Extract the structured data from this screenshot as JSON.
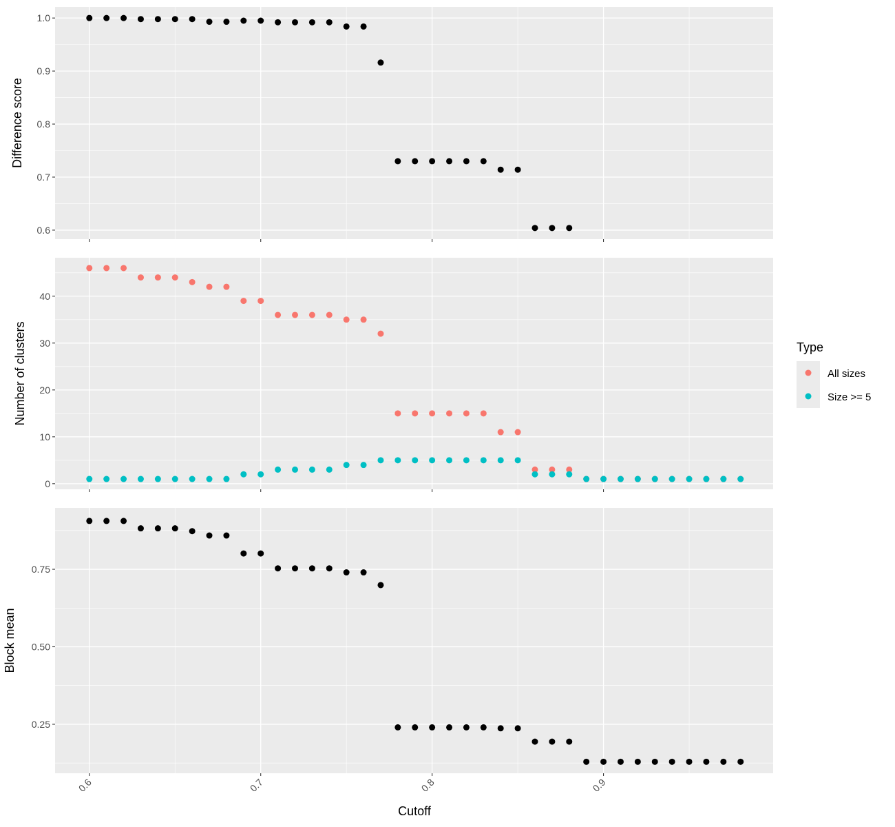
{
  "chart_data": {
    "type": "scatter",
    "xlabel": "Cutoff",
    "x_ticks": [
      "0.6",
      "0.7",
      "0.8",
      "0.9"
    ],
    "x_tick_values": [
      0.6,
      0.7,
      0.8,
      0.9
    ],
    "xlim": [
      0.58,
      0.999
    ],
    "grid": true,
    "legend": {
      "title": "Type",
      "placement": "right",
      "entries": [
        {
          "label": "All sizes",
          "color": "#F8766D"
        },
        {
          "label": "Size >= 5",
          "color": "#00BFC4"
        }
      ]
    },
    "panels": [
      {
        "ylabel": "Difference score",
        "ylim": [
          0.583,
          1.021
        ],
        "y_ticks": [
          "0.6",
          "0.7",
          "0.8",
          "0.9",
          "1.0"
        ],
        "y_tick_values": [
          0.6,
          0.7,
          0.8,
          0.9,
          1.0
        ],
        "series": [
          {
            "name": "Difference score",
            "color": "#000000",
            "x": [
              0.6,
              0.61,
              0.62,
              0.63,
              0.64,
              0.65,
              0.66,
              0.67,
              0.68,
              0.69,
              0.7,
              0.71,
              0.72,
              0.73,
              0.74,
              0.75,
              0.76,
              0.77,
              0.78,
              0.79,
              0.8,
              0.81,
              0.82,
              0.83,
              0.84,
              0.85,
              0.86,
              0.87,
              0.88
            ],
            "y": [
              1.0,
              1.0,
              1.0,
              0.998,
              0.998,
              0.998,
              0.998,
              0.993,
              0.993,
              0.995,
              0.995,
              0.992,
              0.992,
              0.992,
              0.992,
              0.984,
              0.984,
              0.916,
              0.73,
              0.73,
              0.73,
              0.73,
              0.73,
              0.73,
              0.714,
              0.714,
              0.604,
              0.604,
              0.604
            ]
          }
        ]
      },
      {
        "ylabel": "Number of clusters",
        "ylim": [
          -1.2,
          48.2
        ],
        "y_ticks": [
          "0",
          "10",
          "20",
          "30",
          "40"
        ],
        "y_tick_values": [
          0,
          10,
          20,
          30,
          40
        ],
        "series": [
          {
            "name": "All sizes",
            "color": "#F8766D",
            "x": [
              0.6,
              0.61,
              0.62,
              0.63,
              0.64,
              0.65,
              0.66,
              0.67,
              0.68,
              0.69,
              0.7,
              0.71,
              0.72,
              0.73,
              0.74,
              0.75,
              0.76,
              0.77,
              0.78,
              0.79,
              0.8,
              0.81,
              0.82,
              0.83,
              0.84,
              0.85,
              0.86,
              0.87,
              0.88,
              0.89,
              0.9,
              0.91,
              0.92,
              0.93,
              0.94,
              0.95,
              0.96,
              0.97,
              0.98
            ],
            "y": [
              46,
              46,
              46,
              44,
              44,
              44,
              43,
              42,
              42,
              39,
              39,
              36,
              36,
              36,
              36,
              35,
              35,
              32,
              15,
              15,
              15,
              15,
              15,
              15,
              11,
              11,
              3,
              3,
              3,
              1,
              1,
              1,
              1,
              1,
              1,
              1,
              1,
              1,
              1
            ]
          },
          {
            "name": "Size >= 5",
            "color": "#00BFC4",
            "x": [
              0.6,
              0.61,
              0.62,
              0.63,
              0.64,
              0.65,
              0.66,
              0.67,
              0.68,
              0.69,
              0.7,
              0.71,
              0.72,
              0.73,
              0.74,
              0.75,
              0.76,
              0.77,
              0.78,
              0.79,
              0.8,
              0.81,
              0.82,
              0.83,
              0.84,
              0.85,
              0.86,
              0.87,
              0.88,
              0.89,
              0.9,
              0.91,
              0.92,
              0.93,
              0.94,
              0.95,
              0.96,
              0.97,
              0.98
            ],
            "y": [
              1,
              1,
              1,
              1,
              1,
              1,
              1,
              1,
              1,
              2,
              2,
              3,
              3,
              3,
              3,
              4,
              4,
              5,
              5,
              5,
              5,
              5,
              5,
              5,
              5,
              5,
              2,
              2,
              2,
              1,
              1,
              1,
              1,
              1,
              1,
              1,
              1,
              1,
              1
            ]
          }
        ]
      },
      {
        "ylabel": "Block mean",
        "ylim": [
          0.092,
          0.948
        ],
        "y_ticks": [
          "0.25",
          "0.50",
          "0.75"
        ],
        "y_tick_values": [
          0.25,
          0.5,
          0.75
        ],
        "series": [
          {
            "name": "Block mean",
            "color": "#000000",
            "x": [
              0.6,
              0.61,
              0.62,
              0.63,
              0.64,
              0.65,
              0.66,
              0.67,
              0.68,
              0.69,
              0.7,
              0.71,
              0.72,
              0.73,
              0.74,
              0.75,
              0.76,
              0.77,
              0.78,
              0.79,
              0.8,
              0.81,
              0.82,
              0.83,
              0.84,
              0.85,
              0.86,
              0.87,
              0.88,
              0.89,
              0.9,
              0.91,
              0.92,
              0.93,
              0.94,
              0.95,
              0.96,
              0.97,
              0.98
            ],
            "y": [
              0.906,
              0.906,
              0.906,
              0.882,
              0.882,
              0.882,
              0.873,
              0.859,
              0.859,
              0.801,
              0.801,
              0.753,
              0.753,
              0.753,
              0.753,
              0.74,
              0.74,
              0.699,
              0.24,
              0.24,
              0.24,
              0.24,
              0.24,
              0.24,
              0.237,
              0.237,
              0.194,
              0.194,
              0.194,
              0.129,
              0.129,
              0.129,
              0.129,
              0.129,
              0.129,
              0.129,
              0.129,
              0.129,
              0.129
            ]
          }
        ]
      }
    ]
  }
}
